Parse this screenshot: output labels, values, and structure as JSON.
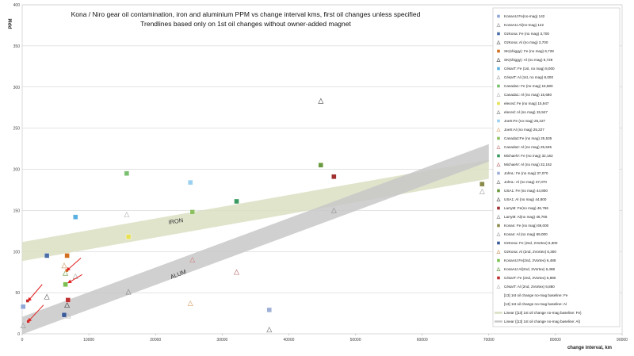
{
  "chart_data": {
    "type": "scatter",
    "title": "Kona / Niro gear oil contamination,  iron and aluminium PPM vs change interval kms, first oil changes unless specified",
    "subtitle": "Trendlines based only on 1st oil changes without owner-added magnet",
    "xlabel": "change interval, km",
    "ylabel": "PPM",
    "xlim": [
      0,
      90000
    ],
    "ylim": [
      0,
      400
    ],
    "x_ticks": [
      "0",
      "10000",
      "20000",
      "30000",
      "40000",
      "50000",
      "60000",
      "70000",
      "80000",
      "90000"
    ],
    "y_ticks": [
      "0",
      "50",
      "100",
      "150",
      "200",
      "250",
      "300",
      "350",
      "400"
    ],
    "grid": "horizontal",
    "legend_placement": "right",
    "band_labels": [
      "IRON",
      "ALUM"
    ],
    "series": [
      {
        "name": "KonaAU:Fe(no-mag) 142",
        "marker": "square",
        "color": "#8fa8d8",
        "x": [
          142
        ],
        "y": [
          33
        ]
      },
      {
        "name": "KonaAU:Al(no-mag) 142",
        "marker": "triangle",
        "color": "#a0a0a0",
        "x": [
          142
        ],
        "y": [
          10
        ]
      },
      {
        "name": "OzKona: Fe (no mag) 3,700",
        "marker": "square",
        "color": "#4a6fa8",
        "x": [
          3700
        ],
        "y": [
          95
        ]
      },
      {
        "name": "OzKona: Al (no mag) 3,700",
        "marker": "triangle",
        "color": "#777777",
        "x": [
          3700
        ],
        "y": [
          45
        ]
      },
      {
        "name": "SK(shiggy): Fe (no mag) 6,728",
        "marker": "square",
        "color": "#d07020",
        "x": [
          6728
        ],
        "y": [
          95
        ]
      },
      {
        "name": "SK(shiggy): Al (no mag) 6,728",
        "marker": "triangle",
        "color": "#555555",
        "x": [
          6728
        ],
        "y": [
          35
        ]
      },
      {
        "name": "CésarT: Fe  (1st, no mag) 8,000",
        "marker": "square",
        "color": "#5ab0e0",
        "x": [
          8000
        ],
        "y": [
          142
        ]
      },
      {
        "name": "CésarT: Al  (1st, no mag) 8,000",
        "marker": "triangle",
        "color": "#b0b0b0",
        "x": [
          8000
        ],
        "y": [
          70
        ]
      },
      {
        "name": "Canada1: Fe (no mag) 15,680",
        "marker": "square",
        "color": "#7ac070",
        "x": [
          15680
        ],
        "y": [
          195
        ]
      },
      {
        "name": "Canada1: Al (no mag) 15,680",
        "marker": "triangle",
        "color": "#c0c0c0",
        "x": [
          15680
        ],
        "y": [
          145
        ]
      },
      {
        "name": "eleced: Fe (no mag) 15,947",
        "marker": "square",
        "color": "#e8e050",
        "x": [
          15947
        ],
        "y": [
          118
        ]
      },
      {
        "name": "eleced: Al (no mag) 15,947",
        "marker": "triangle",
        "color": "#909090",
        "x": [
          15947
        ],
        "y": [
          51
        ]
      },
      {
        "name": "JoeS:Fe (no mag) 25,227",
        "marker": "square",
        "color": "#9ad0f0",
        "x": [
          25227
        ],
        "y": [
          184
        ]
      },
      {
        "name": "JoeS:Al (no mag) 25,227",
        "marker": "triangle",
        "color": "#e0b080",
        "x": [
          25227
        ],
        "y": [
          37
        ]
      },
      {
        "name": "Canada2:Fe (no mag) 25,535",
        "marker": "square",
        "color": "#8cc060",
        "x": [
          25535
        ],
        "y": [
          148
        ]
      },
      {
        "name": "Canada2: Al (no mag) 25,535",
        "marker": "triangle",
        "color": "#d09090",
        "x": [
          25535
        ],
        "y": [
          90
        ]
      },
      {
        "name": "MichaelV: Fe (no mag) 32,162",
        "marker": "square",
        "color": "#3a9a60",
        "x": [
          32162
        ],
        "y": [
          161
        ]
      },
      {
        "name": "MichaelV: Al (no mag) 32,162",
        "marker": "triangle",
        "color": "#c08080",
        "x": [
          32162
        ],
        "y": [
          75
        ]
      },
      {
        "name": "JohnL: Fe (no mag) 37,070",
        "marker": "square",
        "color": "#9fb0d8",
        "x": [
          37070
        ],
        "y": [
          29
        ]
      },
      {
        "name": "JohnL: Al (no mag) 37,070",
        "marker": "triangle",
        "color": "#888888",
        "x": [
          37070
        ],
        "y": [
          5
        ]
      },
      {
        "name": "USA1: Fe (no mag) 44,800",
        "marker": "square",
        "color": "#6a9a40",
        "x": [
          44800
        ],
        "y": [
          205
        ]
      },
      {
        "name": "USA1: Al (no mag) 44,800",
        "marker": "triangle",
        "color": "#666666",
        "x": [
          44800
        ],
        "y": [
          283
        ]
      },
      {
        "name": "LarryM: Fe(no mag) 46,766",
        "marker": "square",
        "color": "#a03030",
        "x": [
          46766
        ],
        "y": [
          191
        ]
      },
      {
        "name": "LarryM: Al(no mag) 46,766",
        "marker": "triangle",
        "color": "#999999",
        "x": [
          46766
        ],
        "y": [
          150
        ]
      },
      {
        "name": "Konan: Fe (no mag) 69,000",
        "marker": "square",
        "color": "#8a8a4a",
        "x": [
          69000
        ],
        "y": [
          182
        ]
      },
      {
        "name": "Konan: Al (no mag) 69,000",
        "marker": "triangle",
        "color": "#b0b0b0",
        "x": [
          69000
        ],
        "y": [
          173
        ]
      },
      {
        "name": "OzKona: Fe (2nd, 2Vortex) 6,300",
        "marker": "square",
        "color": "#3a5a98",
        "x": [
          6300
        ],
        "y": [
          23
        ]
      },
      {
        "name": "OzKona: Al (2nd, 2Vortex) 6,300",
        "marker": "triangle",
        "color": "#d0a070",
        "x": [
          6300
        ],
        "y": [
          83
        ]
      },
      {
        "name": "KonaAU:Fe(2nd, 2Vortex) 6,488",
        "marker": "square",
        "color": "#7ac050",
        "x": [
          6488
        ],
        "y": [
          60
        ]
      },
      {
        "name": "KonaAU:Al(2nd, 2Vortex) 6,488",
        "marker": "triangle",
        "color": "#70a050",
        "x": [
          6488
        ],
        "y": [
          74
        ]
      },
      {
        "name": "CésarT: Fe (2nd, 2Vortex) 6,880",
        "marker": "square",
        "color": "#c03030",
        "x": [
          6880
        ],
        "y": [
          41
        ]
      },
      {
        "name": "CésarT: Al (2nd, 2Vortex) 6,880",
        "marker": "triangle",
        "color": "#c0c0c0",
        "x": [
          6880
        ],
        "y": [
          22
        ]
      },
      {
        "name": "[13] 1st oil change no-mag baseline: Fe",
        "marker": "none",
        "color": "#ffffff",
        "x": [],
        "y": []
      },
      {
        "name": "[13] 1st oil change no-mag baseline: Al",
        "marker": "none",
        "color": "#ffffff",
        "x": [],
        "y": []
      },
      {
        "name": "Linear ([13] 1st oil change no-mag baseline: Fe)",
        "marker": "band",
        "color": "#d9dfc2",
        "x": [
          0,
          70000
        ],
        "y": [
          100,
          200
        ]
      },
      {
        "name": "Linear ([13] 1st oil change no-mag baseline: Al)",
        "marker": "band",
        "color": "#c8c8c8",
        "x": [
          0,
          70000
        ],
        "y": [
          10,
          220
        ]
      }
    ],
    "extra_points": [
      {
        "marker": "square",
        "color": "#c03030",
        "x": [
          900
        ],
        "y": [
          15
        ]
      },
      {
        "marker": "square",
        "color": "#c03030",
        "x": [
          800
        ],
        "y": [
          40
        ]
      },
      {
        "marker": "square",
        "color": "#d07020",
        "x": [
          6700
        ],
        "y": [
          77
        ]
      }
    ],
    "arrows_color": "#e02020"
  }
}
